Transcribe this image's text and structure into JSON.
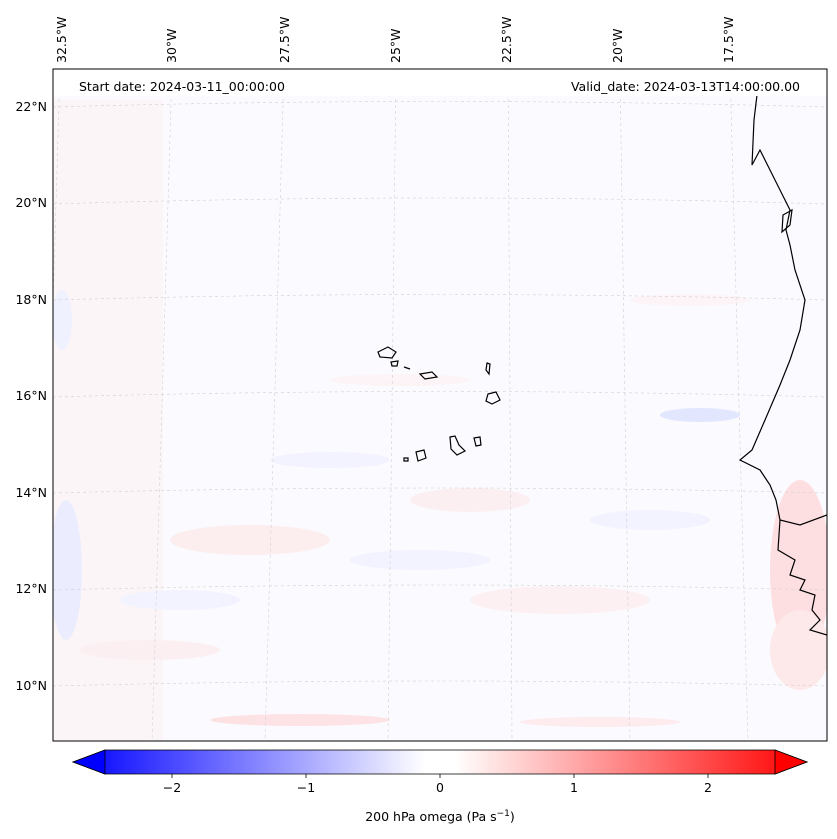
{
  "map": {
    "header_left": "Start date: 2024-03-11_00:00:00",
    "header_right": "Valid_date: 2024-03-13T14:00:00.00",
    "lon_labels": [
      "32.5°W",
      "30°W",
      "27.5°W",
      "25°W",
      "22.5°W",
      "20°W",
      "17.5°W"
    ],
    "lat_labels": [
      "22°N",
      "20°N",
      "18°N",
      "16°N",
      "14°N",
      "12°N",
      "10°N"
    ],
    "field": "200 hPa omega",
    "colors": {
      "negative": "#0000ff",
      "positive": "#ff0000",
      "coast": "#000000",
      "grid": "#c8c8c8"
    }
  },
  "colorbar": {
    "ticks": [
      "−2",
      "−1",
      "0",
      "1",
      "2"
    ],
    "label_main": "200 hPa omega (Pa s",
    "label_sup": "−1",
    "label_end": ")",
    "range": [
      -2.5,
      2.5
    ]
  }
}
